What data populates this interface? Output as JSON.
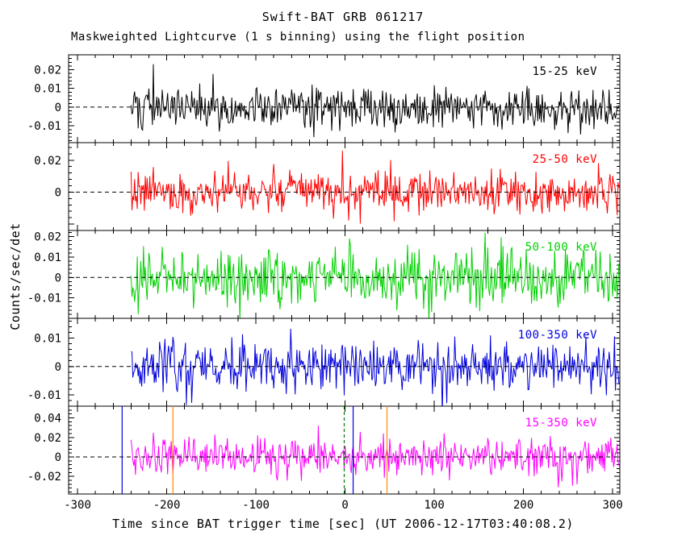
{
  "title": "Swift-BAT GRB 061217",
  "subtitle": "Maskweighted Lightcurve (1 s binning) using the flight position",
  "xlabel": "Time since BAT trigger time [sec] (UT 2006-12-17T03:40:08.2)",
  "ylabel": "Counts/sec/det",
  "colors": {
    "background": "#ffffff",
    "axis": "#000000",
    "zero_line": "#000000"
  },
  "chart_data": {
    "type": "line",
    "title": "Swift-BAT GRB 061217",
    "subtitle": "Maskweighted Lightcurve (1 s binning) using the flight position",
    "xlabel": "Time since BAT trigger time [sec] (UT 2006-12-17T03:40:08.2)",
    "ylabel": "Counts/sec/det",
    "x_range": [
      -310,
      308
    ],
    "x_ticks": [
      -300,
      -200,
      -100,
      0,
      100,
      200,
      300
    ],
    "x_minor_step": 20,
    "data_t_start": -240,
    "data_t_end": 307,
    "bin_seconds": 1,
    "grid": false,
    "legend": "inside-top-right-per-panel",
    "panels": [
      {
        "band": "15-25 keV",
        "color": "#000000",
        "ylim": [
          -0.019,
          0.028
        ],
        "yticks": [
          -0.01,
          0,
          0.01,
          0.02
        ],
        "noise_mean": 0,
        "noise_sigma": 0.0055,
        "seed": 101,
        "spikes": [
          {
            "t": -215,
            "v": 0.023
          }
        ],
        "vlines": []
      },
      {
        "band": "25-50 keV",
        "color": "#ff0000",
        "ylim": [
          -0.024,
          0.031
        ],
        "yticks": [
          0,
          0.02
        ],
        "noise_mean": 0,
        "noise_sigma": 0.0065,
        "seed": 202,
        "spikes": [
          {
            "t": -3,
            "v": 0.026
          }
        ],
        "vlines": []
      },
      {
        "band": "50-100 keV",
        "color": "#00d000",
        "ylim": [
          -0.02,
          0.023
        ],
        "yticks": [
          -0.01,
          0,
          0.01,
          0.02
        ],
        "noise_mean": 0,
        "noise_sigma": 0.0065,
        "seed": 303,
        "spikes": [
          {
            "t": 5,
            "v": 0.019
          }
        ],
        "vlines": []
      },
      {
        "band": "100-350 keV",
        "color": "#0000dd",
        "ylim": [
          -0.014,
          0.017
        ],
        "yticks": [
          -0.01,
          0,
          0.01
        ],
        "noise_mean": 0,
        "noise_sigma": 0.0045,
        "seed": 404,
        "spikes": [],
        "vlines": []
      },
      {
        "band": "15-350 keV",
        "color": "#ff00ff",
        "ylim": [
          -0.038,
          0.052
        ],
        "yticks": [
          -0.02,
          0,
          0.02,
          0.04
        ],
        "noise_mean": 0,
        "noise_sigma": 0.01,
        "seed": 505,
        "spikes": [
          {
            "t": -30,
            "v": 0.032
          }
        ],
        "vlines": [
          {
            "t": -250,
            "color": "#0000dd",
            "style": "solid"
          },
          {
            "t": -193,
            "color": "#ff8800",
            "style": "solid"
          },
          {
            "t": -1,
            "color": "#007700",
            "style": "dashed"
          },
          {
            "t": 9,
            "color": "#0000dd",
            "style": "solid"
          },
          {
            "t": 47,
            "color": "#ff8800",
            "style": "solid"
          }
        ]
      }
    ]
  }
}
